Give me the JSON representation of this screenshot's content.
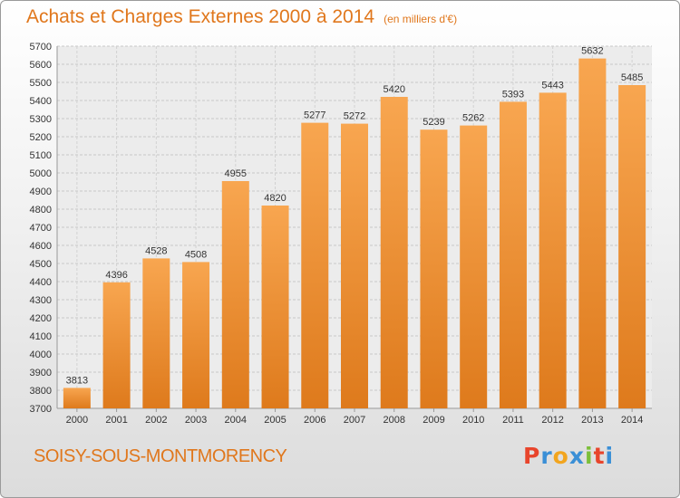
{
  "chart_data": {
    "type": "bar",
    "title": "Achats et Charges Externes 2000 à 2014",
    "subtitle": "(en milliers d'€)",
    "categories": [
      "2000",
      "2001",
      "2002",
      "2003",
      "2004",
      "2005",
      "2006",
      "2007",
      "2008",
      "2009",
      "2010",
      "2011",
      "2012",
      "2013",
      "2014"
    ],
    "values": [
      3813,
      4396,
      4528,
      4508,
      4955,
      4820,
      5277,
      5272,
      5420,
      5239,
      5262,
      5393,
      5443,
      5632,
      5485
    ],
    "ylim": [
      3700,
      5700
    ],
    "ytick_step": 100,
    "grid": true,
    "bar_colors": {
      "top": "#f8a650",
      "bottom": "#de7a1c"
    }
  },
  "footer": {
    "city": "SOISY-SOUS-MONTMORENCY",
    "logo": {
      "letters": [
        "P",
        "r",
        "o",
        "x",
        "i",
        "t",
        "i"
      ],
      "colors": [
        "#e8452c",
        "#3a8fd6",
        "#f2a51e",
        "#3a8fd6",
        "#7cbf3a",
        "#e8452c",
        "#3a8fd6"
      ]
    }
  }
}
